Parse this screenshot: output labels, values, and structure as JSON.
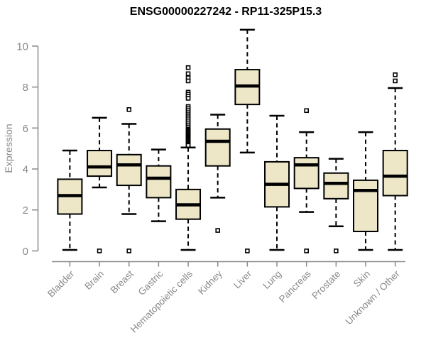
{
  "chart_data": {
    "type": "boxplot",
    "title": "ENSG00000227242 - RP11-325P15.3",
    "ylabel": "Expression",
    "xlabel": "",
    "yticks": [
      0,
      2,
      4,
      6,
      8,
      10
    ],
    "ylim": [
      0,
      10.9
    ],
    "grid": false,
    "legend_position": "none",
    "colors": {
      "box_fill": "#ede7c8",
      "line": "#000000",
      "axis": "#898989",
      "title": "#000000",
      "outlier_fill": "#ffffff",
      "background": "#ffffff"
    },
    "categories": [
      "Bladder",
      "Brain",
      "Breast",
      "Gastric",
      "Hematopoietic cells",
      "Kidney",
      "Liver",
      "Lung",
      "Pancreas",
      "Prostate",
      "Skin",
      "Unknown / Other"
    ],
    "series": [
      {
        "category": "Bladder",
        "whisker_low": 0.05,
        "q1": 1.8,
        "median": 2.7,
        "q3": 3.5,
        "whisker_high": 4.9,
        "outliers": []
      },
      {
        "category": "Brain",
        "whisker_low": 3.1,
        "q1": 3.65,
        "median": 4.1,
        "q3": 4.9,
        "whisker_high": 6.5,
        "outliers": [
          0.0
        ]
      },
      {
        "category": "Breast",
        "whisker_low": 1.8,
        "q1": 3.2,
        "median": 4.2,
        "q3": 4.7,
        "whisker_high": 6.2,
        "outliers": [
          6.9,
          0.0
        ]
      },
      {
        "category": "Gastric",
        "whisker_low": 1.45,
        "q1": 2.6,
        "median": 3.55,
        "q3": 4.15,
        "whisker_high": 4.95,
        "outliers": []
      },
      {
        "category": "Hematopoietic cells",
        "whisker_low": 0.05,
        "q1": 1.55,
        "median": 2.25,
        "q3": 3.0,
        "whisker_high": 5.05,
        "outliers": [
          8.95,
          8.65,
          8.45,
          8.3,
          7.75,
          7.65,
          7.55,
          7.45,
          7.05,
          6.95,
          6.85,
          6.75,
          6.65,
          6.55,
          6.45,
          6.35,
          6.25,
          6.15,
          6.05,
          5.95,
          5.9,
          5.85,
          5.8,
          5.75,
          5.7,
          5.65,
          5.6,
          5.55,
          5.5,
          5.45,
          5.4,
          5.35,
          5.3,
          5.25,
          5.2,
          5.15
        ]
      },
      {
        "category": "Kidney",
        "whisker_low": 2.6,
        "q1": 4.15,
        "median": 5.35,
        "q3": 5.95,
        "whisker_high": 6.65,
        "outliers": [
          1.0
        ]
      },
      {
        "category": "Liver",
        "whisker_low": 4.8,
        "q1": 7.15,
        "median": 8.05,
        "q3": 8.85,
        "whisker_high": 10.8,
        "outliers": [
          0.0
        ]
      },
      {
        "category": "Lung",
        "whisker_low": 0.05,
        "q1": 2.15,
        "median": 3.25,
        "q3": 4.35,
        "whisker_high": 6.6,
        "outliers": []
      },
      {
        "category": "Pancreas",
        "whisker_low": 1.9,
        "q1": 3.05,
        "median": 4.2,
        "q3": 4.55,
        "whisker_high": 5.8,
        "outliers": [
          6.85,
          0.0
        ]
      },
      {
        "category": "Prostate",
        "whisker_low": 1.2,
        "q1": 2.55,
        "median": 3.3,
        "q3": 3.8,
        "whisker_high": 4.5,
        "outliers": [
          0.0
        ]
      },
      {
        "category": "Skin",
        "whisker_low": 0.05,
        "q1": 0.95,
        "median": 2.95,
        "q3": 3.45,
        "whisker_high": 5.8,
        "outliers": []
      },
      {
        "category": "Unknown / Other",
        "whisker_low": 0.05,
        "q1": 2.7,
        "median": 3.65,
        "q3": 4.9,
        "whisker_high": 7.95,
        "outliers": [
          8.6,
          8.3
        ]
      }
    ]
  }
}
